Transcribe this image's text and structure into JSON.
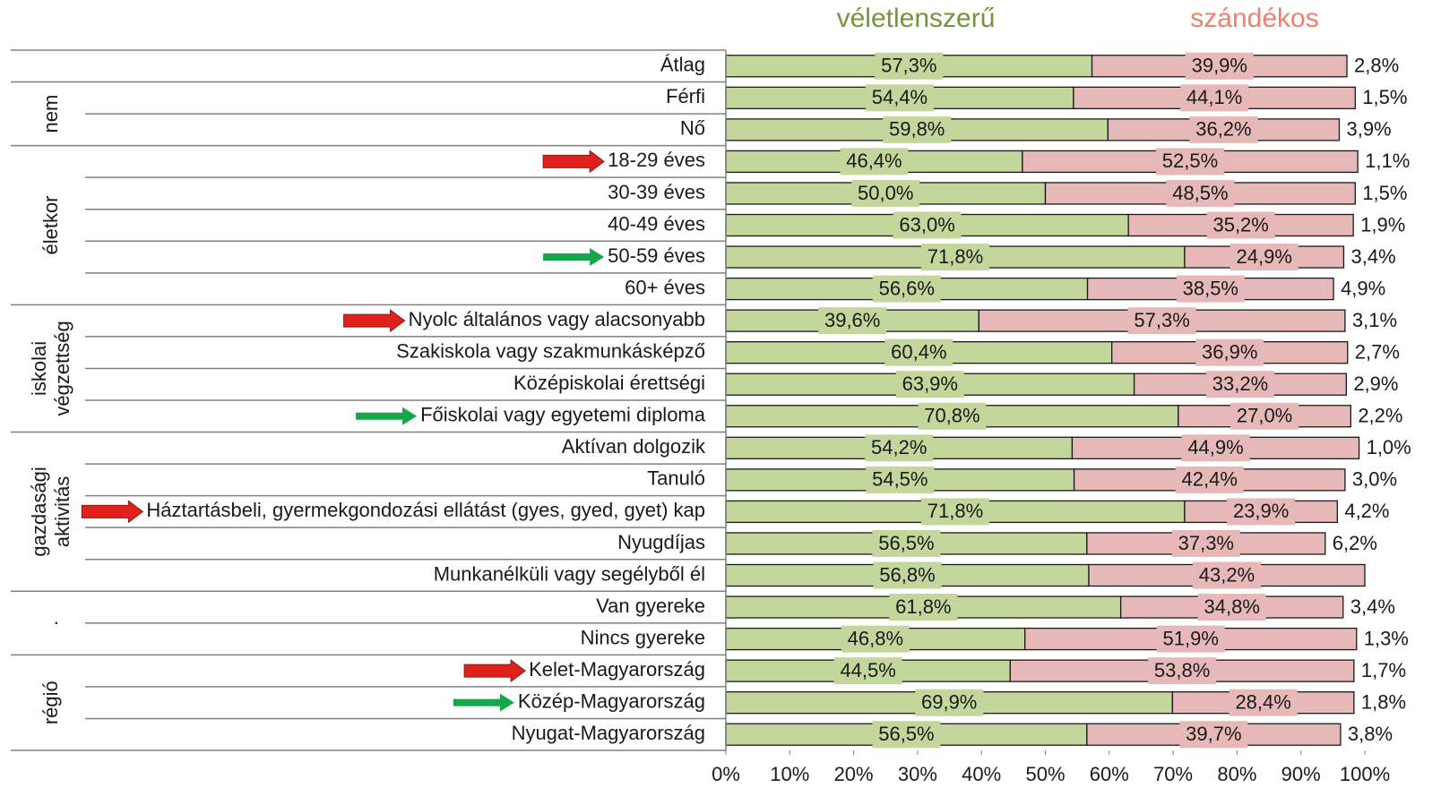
{
  "chart_data": {
    "type": "stacked-bar-horizontal",
    "categories": [
      "Átlag",
      "Férfi",
      "Nő",
      "18-29 éves",
      "30-39 éves",
      "40-49 éves",
      "50-59 éves",
      "60+ éves",
      "Nyolc általános vagy alacsonyabb",
      "Szakiskola vagy szakmunkásképző",
      "Középiskolai érettségi",
      "Főiskolai vagy egyetemi diploma",
      "Aktívan dolgozik",
      "Tanuló",
      "Háztartásbeli, gyermekgondozási ellátást (gyes, gyed, gyet) kap",
      "Nyugdíjas",
      "Munkanélküli vagy segélyből él",
      "Van gyereke",
      "Nincs gyereke",
      "Kelet-Magyarország",
      "Közép-Magyarország",
      "Nyugat-Magyarország"
    ],
    "series": [
      {
        "name": "véletlenszerű",
        "color": "#c3d69b",
        "legend_color": "#77933c",
        "values": [
          57.3,
          54.4,
          59.8,
          46.4,
          50.0,
          63.0,
          71.8,
          56.6,
          39.6,
          60.4,
          63.9,
          70.8,
          54.2,
          54.5,
          71.8,
          56.5,
          56.8,
          61.8,
          46.8,
          44.5,
          69.9,
          56.5
        ],
        "value_labels": [
          "57,3%",
          "54,4%",
          "59,8%",
          "46,4%",
          "50,0%",
          "63,0%",
          "71,8%",
          "56,6%",
          "39,6%",
          "60,4%",
          "63,9%",
          "70,8%",
          "54,2%",
          "54,5%",
          "71,8%",
          "56,5%",
          "56,8%",
          "61,8%",
          "46,8%",
          "44,5%",
          "69,9%",
          "56,5%"
        ]
      },
      {
        "name": "szándékos",
        "color": "#e6b9b8",
        "legend_color": "#f07f6e",
        "values": [
          39.9,
          44.1,
          36.2,
          52.5,
          48.5,
          35.2,
          24.9,
          38.5,
          57.3,
          36.9,
          33.2,
          27.0,
          44.9,
          42.4,
          23.9,
          37.3,
          43.2,
          34.8,
          51.9,
          53.8,
          28.4,
          39.7
        ],
        "value_labels": [
          "39,9%",
          "44,1%",
          "36,2%",
          "52,5%",
          "48,5%",
          "35,2%",
          "24,9%",
          "38,5%",
          "57,3%",
          "36,9%",
          "33,2%",
          "27,0%",
          "44,9%",
          "42,4%",
          "23,9%",
          "37,3%",
          "43,2%",
          "34,8%",
          "51,9%",
          "53,8%",
          "28,4%",
          "39,7%"
        ]
      }
    ],
    "remainder_values": [
      2.8,
      1.5,
      3.9,
      1.1,
      1.5,
      1.9,
      3.4,
      4.9,
      3.1,
      2.7,
      2.9,
      2.2,
      1.0,
      3.0,
      4.2,
      6.2,
      null,
      3.4,
      1.3,
      1.7,
      1.8,
      3.8
    ],
    "remainder_labels": [
      "2,8%",
      "1,5%",
      "3,9%",
      "1,1%",
      "1,5%",
      "1,9%",
      "3,4%",
      "4,9%",
      "3,1%",
      "2,7%",
      "2,9%",
      "2,2%",
      "1,0%",
      "3,0%",
      "4,2%",
      "6,2%",
      null,
      "3,4%",
      "1,3%",
      "1,7%",
      "1,8%",
      "3,8%"
    ],
    "groups": [
      {
        "lines": [],
        "start": 0,
        "end": 0
      },
      {
        "lines": [
          "nem"
        ],
        "start": 1,
        "end": 2
      },
      {
        "lines": [
          "életkor"
        ],
        "start": 3,
        "end": 7
      },
      {
        "lines": [
          "iskolai",
          "végzettség"
        ],
        "start": 8,
        "end": 11
      },
      {
        "lines": [
          "gazdasági",
          "aktivitás"
        ],
        "start": 12,
        "end": 16
      },
      {
        "lines": [
          "."
        ],
        "start": 17,
        "end": 18
      },
      {
        "lines": [
          "régió"
        ],
        "start": 19,
        "end": 21
      }
    ],
    "arrows": [
      {
        "index": 3,
        "color": "#e0201b"
      },
      {
        "index": 6,
        "color": "#14a84a"
      },
      {
        "index": 8,
        "color": "#e0201b"
      },
      {
        "index": 11,
        "color": "#14a84a"
      },
      {
        "index": 14,
        "color": "#e0201b"
      },
      {
        "index": 19,
        "color": "#e0201b"
      },
      {
        "index": 20,
        "color": "#14a84a"
      }
    ],
    "xlim": [
      0,
      100
    ],
    "xticks": [
      {
        "value": 0,
        "label": "0%"
      },
      {
        "value": 10,
        "label": "10%"
      },
      {
        "value": 20,
        "label": "20%"
      },
      {
        "value": 30,
        "label": "30%"
      },
      {
        "value": 40,
        "label": "40%"
      },
      {
        "value": 50,
        "label": "50%"
      },
      {
        "value": 60,
        "label": "60%"
      },
      {
        "value": 70,
        "label": "70%"
      },
      {
        "value": 80,
        "label": "80%"
      },
      {
        "value": 90,
        "label": "90%"
      },
      {
        "value": 100,
        "label": "100%"
      }
    ]
  }
}
